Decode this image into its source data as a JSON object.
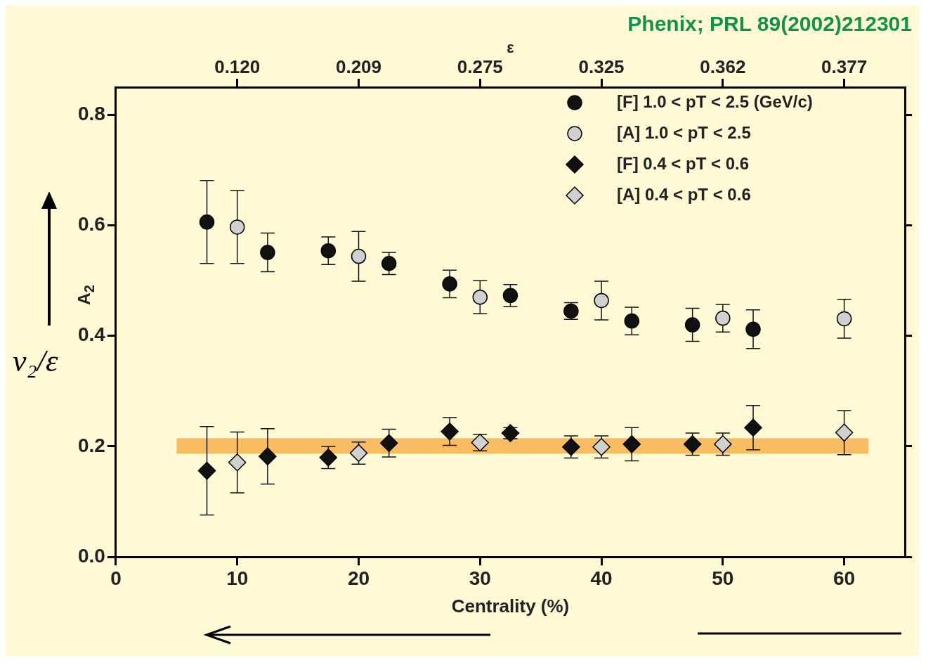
{
  "chart_data": {
    "type": "scatter",
    "title": "Phenix; PRL 89(2002)212301",
    "xlabel": "Centrality (%)",
    "ylabel": "A$_{2}$",
    "annotations": [
      "v₂/ε",
      "ε",
      {
        "text": "0.120",
        "x": 10
      },
      {
        "text": "0.209",
        "x": 20
      },
      {
        "text": "0.275",
        "x": 30
      },
      {
        "text": "0.325",
        "x": 40
      },
      {
        "text": "0.362",
        "x": 50
      },
      {
        "text": "0.377",
        "x": 60
      }
    ],
    "xlim": [
      0,
      65
    ],
    "xticks": [
      0,
      10,
      20,
      30,
      40,
      50,
      60
    ],
    "ylim": [
      0,
      0.85
    ],
    "yticks": [
      {
        "value": 0,
        "label": "0.0"
      },
      {
        "value": 0.2,
        "label": "0.2"
      },
      {
        "value": 0.4,
        "label": "0.4"
      },
      {
        "value": 0.6,
        "label": "0.6"
      },
      {
        "value": 0.8,
        "label": "0.8"
      }
    ],
    "grid": false,
    "legend": "top right",
    "bands": [
      {
        "axis": "y",
        "from": 0.187,
        "to": 0.215,
        "color": "#f7b24f"
      }
    ],
    "series": [
      {
        "name": "[F] 1.0 < pT < 2.5 (GeV/c)",
        "color": "#111111",
        "marker": "circle",
        "x": [
          7.5,
          12.5,
          17.5,
          22.5,
          27.5,
          32.5,
          37.5,
          42.5,
          47.5,
          52.5
        ],
        "values": [
          0.606,
          0.551,
          0.554,
          0.531,
          0.494,
          0.473,
          0.445,
          0.427,
          0.42,
          0.412
        ],
        "errors": [
          0.075,
          0.035,
          0.025,
          0.02,
          0.025,
          0.02,
          0.015,
          0.025,
          0.03,
          0.035
        ]
      },
      {
        "name": "[A] 1.0 < pT < 2.5",
        "color": "#d0d0d0",
        "marker": "circle",
        "x": [
          10,
          20,
          30,
          40,
          50,
          60
        ],
        "values": [
          0.597,
          0.544,
          0.47,
          0.464,
          0.432,
          0.431
        ],
        "errors": [
          0.066,
          0.045,
          0.03,
          0.035,
          0.025,
          0.035
        ]
      },
      {
        "name": "[F] 0.4 < pT < 0.6",
        "color": "#111111",
        "marker": "diamond",
        "x": [
          7.5,
          12.5,
          17.5,
          22.5,
          27.5,
          32.5,
          37.5,
          42.5,
          47.5,
          52.5
        ],
        "values": [
          0.156,
          0.182,
          0.18,
          0.206,
          0.227,
          0.224,
          0.199,
          0.204,
          0.204,
          0.234
        ],
        "errors": [
          0.08,
          0.05,
          0.02,
          0.025,
          0.025,
          0.01,
          0.02,
          0.03,
          0.02,
          0.04
        ]
      },
      {
        "name": "[A] 0.4 < pT < 0.6",
        "color": "#d0d0d0",
        "marker": "diamond",
        "x": [
          10,
          20,
          30,
          40,
          50,
          60
        ],
        "values": [
          0.171,
          0.188,
          0.207,
          0.199,
          0.204,
          0.225
        ],
        "errors": [
          0.055,
          0.02,
          0.015,
          0.02,
          0.02,
          0.04
        ]
      }
    ]
  }
}
